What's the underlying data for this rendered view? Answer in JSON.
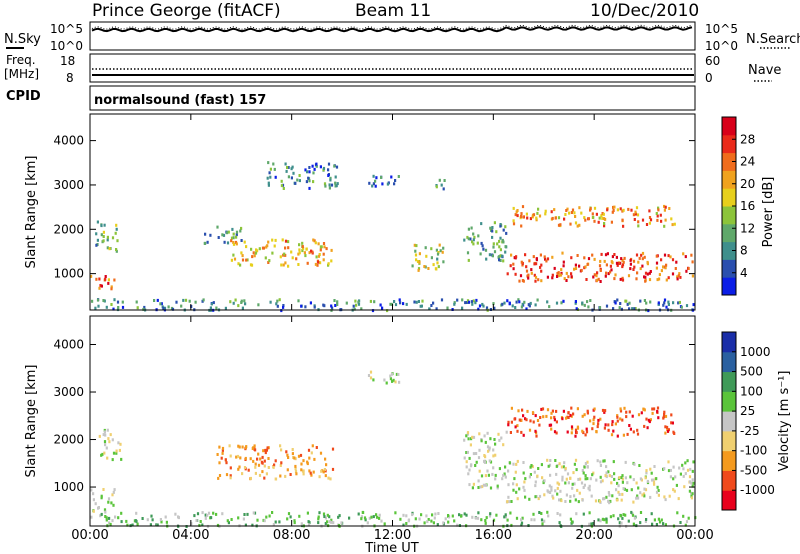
{
  "header": {
    "station": "Prince George (fitACF)",
    "beam": "Beam 11",
    "date": "10/Dec/2010"
  },
  "noise_panel": {
    "left_label": "N.Sky",
    "left_ticks": [
      "10^5",
      "10^0"
    ],
    "right_label": "N.Search",
    "right_ticks": [
      "10^5",
      "10^0"
    ]
  },
  "freq_panel": {
    "left_label_1": "Freq.",
    "left_label_2": "[MHz]",
    "left_ticks": [
      "18",
      "8"
    ],
    "right_label": "Nave",
    "right_ticks": [
      "60",
      "0"
    ]
  },
  "cpid": {
    "label": "CPID",
    "mode": "normalsound (fast) 157"
  },
  "colors": {
    "power_scale": [
      "#0b1ee6",
      "#2a4fae",
      "#3f8f8c",
      "#5fa86a",
      "#8cc43a",
      "#e7cf1c",
      "#f0a21e",
      "#f06c1c",
      "#ea2a1a",
      "#d8001a"
    ],
    "velocity_scale": [
      "#e8001c",
      "#f04a1c",
      "#f49a1e",
      "#f0d070",
      "#c6c6c6",
      "#5ac43a",
      "#3f9a58",
      "#2a60a0",
      "#1a2ea8"
    ]
  },
  "chart_data": [
    {
      "type": "heatmap",
      "name": "power",
      "xlabel": "",
      "ylabel": "Slant Range [km]",
      "y_ticks": [
        "4000",
        "3000",
        "2000",
        "1000"
      ],
      "ylim": [
        180,
        4600
      ],
      "x_hours": [
        0,
        24
      ],
      "colorbar": {
        "label": "Power [dB]",
        "ticks": [
          "28",
          "24",
          "20",
          "16",
          "12",
          "8",
          "4"
        ],
        "range": [
          0,
          32
        ]
      },
      "echo_regions": [
        {
          "t0": 0.0,
          "t1": 1.0,
          "r0": 650,
          "r1": 1000,
          "level": 22
        },
        {
          "t0": 0.2,
          "t1": 1.1,
          "r0": 1500,
          "r1": 2200,
          "level": 10
        },
        {
          "t0": 0.0,
          "t1": 24.0,
          "r0": 200,
          "r1": 450,
          "level": 6
        },
        {
          "t0": 4.5,
          "t1": 6.0,
          "r0": 1700,
          "r1": 2100,
          "level": 8
        },
        {
          "t0": 5.5,
          "t1": 9.6,
          "r0": 1200,
          "r1": 1800,
          "level": 18
        },
        {
          "t0": 7.0,
          "t1": 9.8,
          "r0": 2950,
          "r1": 3550,
          "level": 6
        },
        {
          "t0": 11.0,
          "t1": 12.3,
          "r0": 3000,
          "r1": 3300,
          "level": 6
        },
        {
          "t0": 12.6,
          "t1": 14.0,
          "r0": 1100,
          "r1": 1700,
          "level": 14
        },
        {
          "t0": 13.7,
          "t1": 14.1,
          "r0": 2850,
          "r1": 3200,
          "level": 10
        },
        {
          "t0": 14.8,
          "t1": 16.5,
          "r0": 1300,
          "r1": 2200,
          "level": 8
        },
        {
          "t0": 16.5,
          "t1": 23.9,
          "r0": 850,
          "r1": 1500,
          "level": 24
        },
        {
          "t0": 16.5,
          "t1": 23.2,
          "r0": 2100,
          "r1": 2550,
          "level": 20
        }
      ]
    },
    {
      "type": "heatmap",
      "name": "velocity",
      "xlabel": "Time UT",
      "ylabel": "Slant Range [km]",
      "y_ticks": [
        "4000",
        "3000",
        "2000",
        "1000"
      ],
      "ylim": [
        180,
        4600
      ],
      "x_ticks": [
        "00:00",
        "04:00",
        "08:00",
        "12:00",
        "16:00",
        "20:00",
        "00:00"
      ],
      "x_hours": [
        0,
        24
      ],
      "colorbar": {
        "label": "Velocity [m s⁻¹]",
        "ticks": [
          "1000",
          "500",
          "100",
          "25",
          "-25",
          "-100",
          "-500",
          "-1000"
        ]
      },
      "echo_regions": [
        {
          "t0": 0.0,
          "t1": 1.0,
          "r0": 500,
          "r1": 1000,
          "level": 4
        },
        {
          "t0": 0.3,
          "t1": 1.2,
          "r0": 1600,
          "r1": 2300,
          "level": 4
        },
        {
          "t0": 0.0,
          "t1": 24.0,
          "r0": 200,
          "r1": 500,
          "level": 5
        },
        {
          "t0": 5.0,
          "t1": 9.6,
          "r0": 1200,
          "r1": 1900,
          "level": 2
        },
        {
          "t0": 14.8,
          "t1": 16.5,
          "r0": 1000,
          "r1": 2200,
          "level": 4
        },
        {
          "t0": 16.5,
          "t1": 23.9,
          "r0": 700,
          "r1": 1600,
          "level": 4
        },
        {
          "t0": 16.5,
          "t1": 23.2,
          "r0": 2100,
          "r1": 2700,
          "level": 1
        },
        {
          "t0": 11.0,
          "t1": 12.3,
          "r0": 3200,
          "r1": 3500,
          "level": 4
        }
      ]
    }
  ]
}
